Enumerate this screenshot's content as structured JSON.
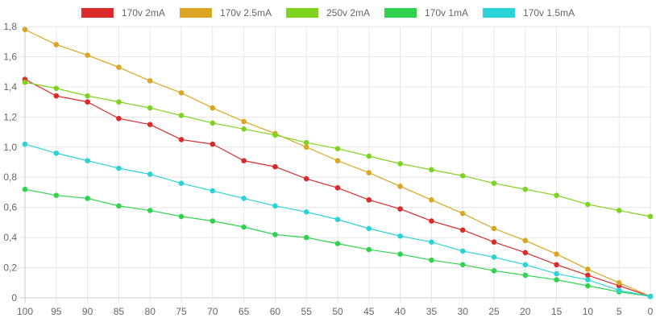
{
  "chart_data": {
    "type": "line",
    "title": "",
    "xlabel": "",
    "ylabel": "",
    "x": [
      100,
      95,
      90,
      85,
      80,
      75,
      70,
      65,
      60,
      55,
      50,
      45,
      40,
      35,
      30,
      25,
      20,
      15,
      10,
      5,
      0
    ],
    "x_tick_labels": [
      "100",
      "95",
      "90",
      "85",
      "80",
      "75",
      "70",
      "65",
      "60",
      "55",
      "50",
      "45",
      "40",
      "35",
      "30",
      "25",
      "20",
      "15",
      "10",
      "5",
      "0"
    ],
    "ylim": [
      0,
      1.8
    ],
    "y_ticks": [
      0,
      0.2,
      0.4,
      0.6,
      0.8,
      1.0,
      1.2,
      1.4,
      1.6,
      1.8
    ],
    "y_tick_labels": [
      "0",
      "0,2",
      "0,4",
      "0,6",
      "0,8",
      "1,0",
      "1,2",
      "1,4",
      "1,6",
      "1,8"
    ],
    "grid": true,
    "legend_position": "top",
    "series": [
      {
        "name": "170v 2mA",
        "color": "#dc2a2a",
        "values": [
          1.45,
          1.34,
          1.3,
          1.19,
          1.15,
          1.05,
          1.02,
          0.91,
          0.87,
          0.79,
          0.73,
          0.65,
          0.59,
          0.51,
          0.45,
          0.37,
          0.3,
          0.22,
          0.15,
          0.08,
          0.01
        ]
      },
      {
        "name": "170v 2.5mA",
        "color": "#daa520",
        "values": [
          1.78,
          1.68,
          1.61,
          1.53,
          1.44,
          1.36,
          1.26,
          1.17,
          1.09,
          1.0,
          0.91,
          0.83,
          0.74,
          0.65,
          0.56,
          0.46,
          0.38,
          0.29,
          0.19,
          0.1,
          0.01
        ]
      },
      {
        "name": "250v 2mA",
        "color": "#7ed321",
        "values": [
          1.43,
          1.39,
          1.34,
          1.3,
          1.26,
          1.21,
          1.16,
          1.12,
          1.08,
          1.03,
          0.99,
          0.94,
          0.89,
          0.85,
          0.81,
          0.76,
          0.72,
          0.68,
          0.62,
          0.58,
          0.54
        ]
      },
      {
        "name": "170v 1mA",
        "color": "#2fd34e",
        "values": [
          0.72,
          0.68,
          0.66,
          0.61,
          0.58,
          0.54,
          0.51,
          0.47,
          0.42,
          0.4,
          0.36,
          0.32,
          0.29,
          0.25,
          0.22,
          0.18,
          0.15,
          0.12,
          0.08,
          0.04,
          0.01
        ]
      },
      {
        "name": "170v 1.5mA",
        "color": "#2bd3d8",
        "values": [
          1.02,
          0.96,
          0.91,
          0.86,
          0.82,
          0.76,
          0.71,
          0.66,
          0.61,
          0.57,
          0.52,
          0.46,
          0.41,
          0.37,
          0.31,
          0.27,
          0.22,
          0.16,
          0.12,
          0.05,
          0.01
        ]
      }
    ]
  }
}
